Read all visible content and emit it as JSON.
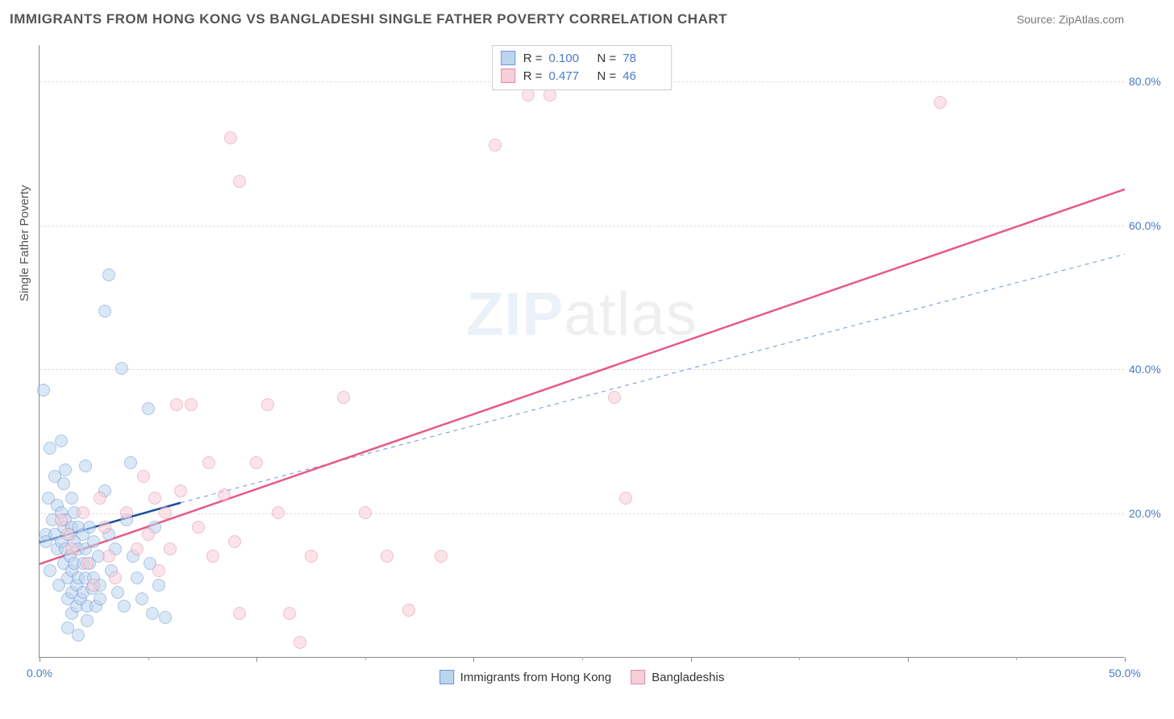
{
  "header": {
    "title": "IMMIGRANTS FROM HONG KONG VS BANGLADESHI SINGLE FATHER POVERTY CORRELATION CHART",
    "source_prefix": "Source: ",
    "source_name": "ZipAtlas.com"
  },
  "watermark": {
    "zip": "ZIP",
    "atlas": "atlas"
  },
  "chart": {
    "type": "scatter",
    "xlim": [
      0,
      50
    ],
    "ylim": [
      0,
      85
    ],
    "x_ticks": [
      0,
      10,
      20,
      30,
      40,
      50
    ],
    "x_tick_labels": [
      "0.0%",
      "",
      "",
      "",
      "",
      "50.0%"
    ],
    "x_minor_ticks": [
      5,
      15,
      25,
      35,
      45
    ],
    "y_ticks": [
      20,
      40,
      60,
      80
    ],
    "y_tick_labels": [
      "20.0%",
      "40.0%",
      "60.0%",
      "80.0%"
    ],
    "ylabel": "Single Father Poverty",
    "background_color": "#ffffff",
    "grid_color": "#dddddd",
    "axis_color": "#888888",
    "tick_label_color": "#4a7ac7",
    "label_fontsize": 15,
    "tick_fontsize": 14,
    "title_fontsize": 17,
    "marker_radius": 8,
    "marker_opacity": 0.55,
    "series": [
      {
        "name": "Immigrants from Hong Kong",
        "fill": "#bcd4ee",
        "stroke": "#6a96d6",
        "R": "0.100",
        "N": "78",
        "trend": {
          "x1": 0,
          "y1": 16,
          "x2": 6.5,
          "y2": 21.5,
          "stroke": "#1a4e9e",
          "width": 2.5,
          "dash": "none"
        },
        "extrapolate": {
          "x1": 6.5,
          "y1": 21.5,
          "x2": 50,
          "y2": 56,
          "stroke": "#6a96d6",
          "width": 1,
          "dash": "5,5"
        },
        "points": [
          [
            0.2,
            37
          ],
          [
            0.3,
            17
          ],
          [
            0.3,
            16
          ],
          [
            0.5,
            29
          ],
          [
            0.4,
            22
          ],
          [
            0.5,
            12
          ],
          [
            0.6,
            19
          ],
          [
            0.7,
            25
          ],
          [
            0.7,
            17
          ],
          [
            0.8,
            21
          ],
          [
            0.8,
            15
          ],
          [
            0.9,
            10
          ],
          [
            1.0,
            30
          ],
          [
            1.0,
            20
          ],
          [
            1.0,
            16
          ],
          [
            1.1,
            24
          ],
          [
            1.1,
            18
          ],
          [
            1.1,
            13
          ],
          [
            1.2,
            26
          ],
          [
            1.2,
            19
          ],
          [
            1.2,
            15
          ],
          [
            1.3,
            11
          ],
          [
            1.3,
            8
          ],
          [
            1.4,
            17
          ],
          [
            1.4,
            14
          ],
          [
            1.5,
            22
          ],
          [
            1.5,
            18
          ],
          [
            1.5,
            12
          ],
          [
            1.5,
            9
          ],
          [
            1.5,
            6
          ],
          [
            1.6,
            20
          ],
          [
            1.6,
            16
          ],
          [
            1.6,
            13
          ],
          [
            1.7,
            10
          ],
          [
            1.7,
            7
          ],
          [
            1.8,
            18
          ],
          [
            1.8,
            15
          ],
          [
            1.8,
            11
          ],
          [
            1.9,
            8
          ],
          [
            2.0,
            17
          ],
          [
            2.0,
            13
          ],
          [
            2.0,
            9
          ],
          [
            2.1,
            26.5
          ],
          [
            2.1,
            15
          ],
          [
            2.1,
            11
          ],
          [
            2.2,
            7
          ],
          [
            2.2,
            5
          ],
          [
            2.3,
            18
          ],
          [
            2.3,
            13
          ],
          [
            2.4,
            9.5
          ],
          [
            2.5,
            16
          ],
          [
            2.5,
            11
          ],
          [
            2.6,
            7
          ],
          [
            2.7,
            14
          ],
          [
            2.8,
            10
          ],
          [
            2.8,
            8
          ],
          [
            3.0,
            48
          ],
          [
            3.2,
            53
          ],
          [
            3.2,
            17
          ],
          [
            3.3,
            12
          ],
          [
            3.5,
            15
          ],
          [
            3.6,
            9
          ],
          [
            3.8,
            40
          ],
          [
            3.9,
            7
          ],
          [
            4.2,
            27
          ],
          [
            4.3,
            14
          ],
          [
            4.5,
            11
          ],
          [
            4.7,
            8
          ],
          [
            5.0,
            34.5
          ],
          [
            5.1,
            13
          ],
          [
            5.2,
            6
          ],
          [
            5.3,
            18
          ],
          [
            5.5,
            10
          ],
          [
            5.8,
            5.5
          ],
          [
            4.0,
            19
          ],
          [
            3.0,
            23
          ],
          [
            1.3,
            4
          ],
          [
            1.8,
            3
          ]
        ]
      },
      {
        "name": "Bangladeshis",
        "fill": "#f6cfd8",
        "stroke": "#e48aa3",
        "R": "0.477",
        "N": "46",
        "trend": {
          "x1": 0,
          "y1": 13,
          "x2": 50,
          "y2": 65,
          "stroke": "#e85a85",
          "width": 2.5,
          "dash": "none"
        },
        "extrapolate": null,
        "points": [
          [
            1.0,
            19
          ],
          [
            1.3,
            17
          ],
          [
            1.5,
            15
          ],
          [
            2.0,
            20
          ],
          [
            2.2,
            13
          ],
          [
            2.5,
            10
          ],
          [
            2.8,
            22
          ],
          [
            3.0,
            18
          ],
          [
            3.2,
            14
          ],
          [
            3.5,
            11
          ],
          [
            4.0,
            20
          ],
          [
            4.5,
            15
          ],
          [
            4.8,
            25
          ],
          [
            5.0,
            17
          ],
          [
            5.3,
            22
          ],
          [
            5.5,
            12
          ],
          [
            5.8,
            20
          ],
          [
            6.0,
            15
          ],
          [
            6.3,
            35
          ],
          [
            6.5,
            23
          ],
          [
            7.0,
            35
          ],
          [
            7.3,
            18
          ],
          [
            7.8,
            27
          ],
          [
            8.0,
            14
          ],
          [
            8.5,
            22.5
          ],
          [
            8.8,
            72
          ],
          [
            9.0,
            16
          ],
          [
            9.2,
            66
          ],
          [
            9.2,
            6
          ],
          [
            10.0,
            27
          ],
          [
            10.5,
            35
          ],
          [
            11.0,
            20
          ],
          [
            11.5,
            6
          ],
          [
            12.0,
            2
          ],
          [
            12.5,
            14
          ],
          [
            14.0,
            36
          ],
          [
            15.0,
            20
          ],
          [
            16.0,
            14
          ],
          [
            17.0,
            6.5
          ],
          [
            18.5,
            14
          ],
          [
            21.0,
            71
          ],
          [
            22.5,
            78
          ],
          [
            26.5,
            36
          ],
          [
            27.0,
            22
          ],
          [
            41.5,
            77
          ],
          [
            23.5,
            78
          ]
        ]
      }
    ],
    "bottom_legend": [
      {
        "swatch_fill": "#bcd4ee",
        "swatch_stroke": "#6a96d6",
        "label": "Immigrants from Hong Kong"
      },
      {
        "swatch_fill": "#f6cfd8",
        "swatch_stroke": "#e48aa3",
        "label": "Bangladeshis"
      }
    ]
  }
}
